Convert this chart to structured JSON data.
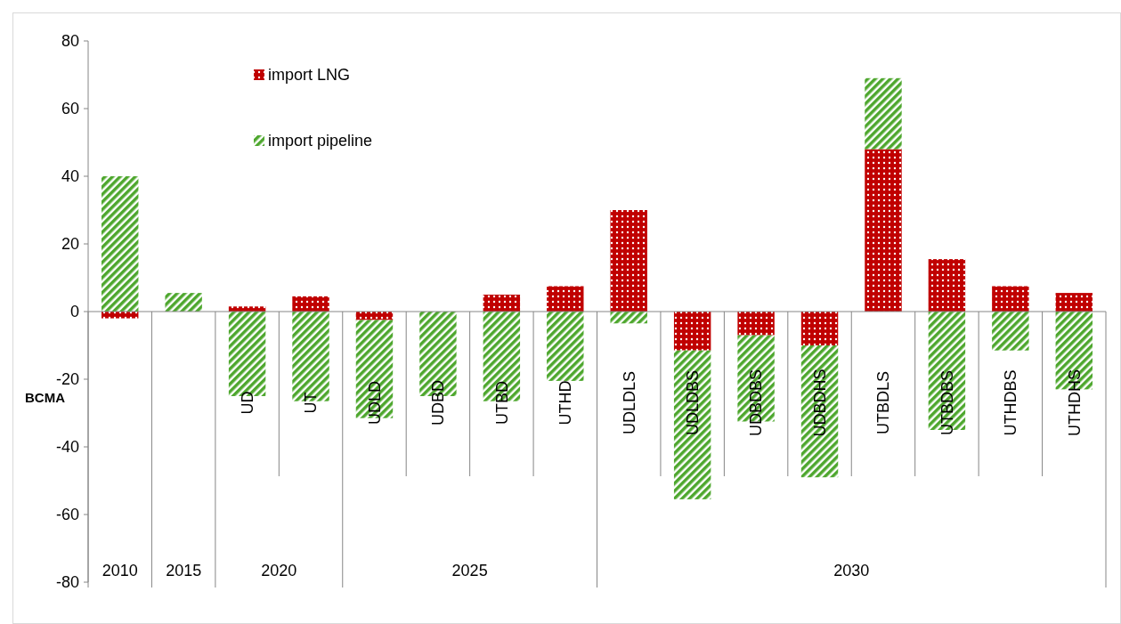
{
  "chart_data": {
    "type": "bar",
    "stacked": true,
    "ylabel": "BCMA",
    "categories": [
      null,
      null,
      "UD",
      "UT",
      "UDLD",
      "UDBD",
      "UTBD",
      "UTHD",
      "UDLDLS",
      "UDLDBS",
      "UDBDBS",
      "UDBDHS",
      "UTBDLS",
      "UTBDBS",
      "UTHDBS",
      "UTHDHS"
    ],
    "series": [
      {
        "name": "import LNG",
        "color": "#c00000",
        "values": [
          -2,
          0,
          1.5,
          4.5,
          -2.5,
          0,
          5,
          7.5,
          30,
          -11.5,
          -7,
          -10,
          48,
          15.5,
          7.5,
          5.5
        ]
      },
      {
        "name": "import pipeline",
        "color": "#4ea72e",
        "values": [
          40,
          5.5,
          -25,
          -26.5,
          -29,
          -25,
          -26.5,
          -20.5,
          -3.5,
          -44,
          -25.5,
          -39,
          21,
          -35,
          -11.5,
          -23
        ]
      }
    ],
    "annotations": [
      "2010",
      "2015",
      "2020",
      "2025",
      "2030"
    ],
    "ylim": [
      -80,
      80
    ],
    "yticks": [
      -80,
      -60,
      -40,
      -20,
      0,
      20,
      40,
      60,
      80
    ],
    "legend": "top left"
  }
}
